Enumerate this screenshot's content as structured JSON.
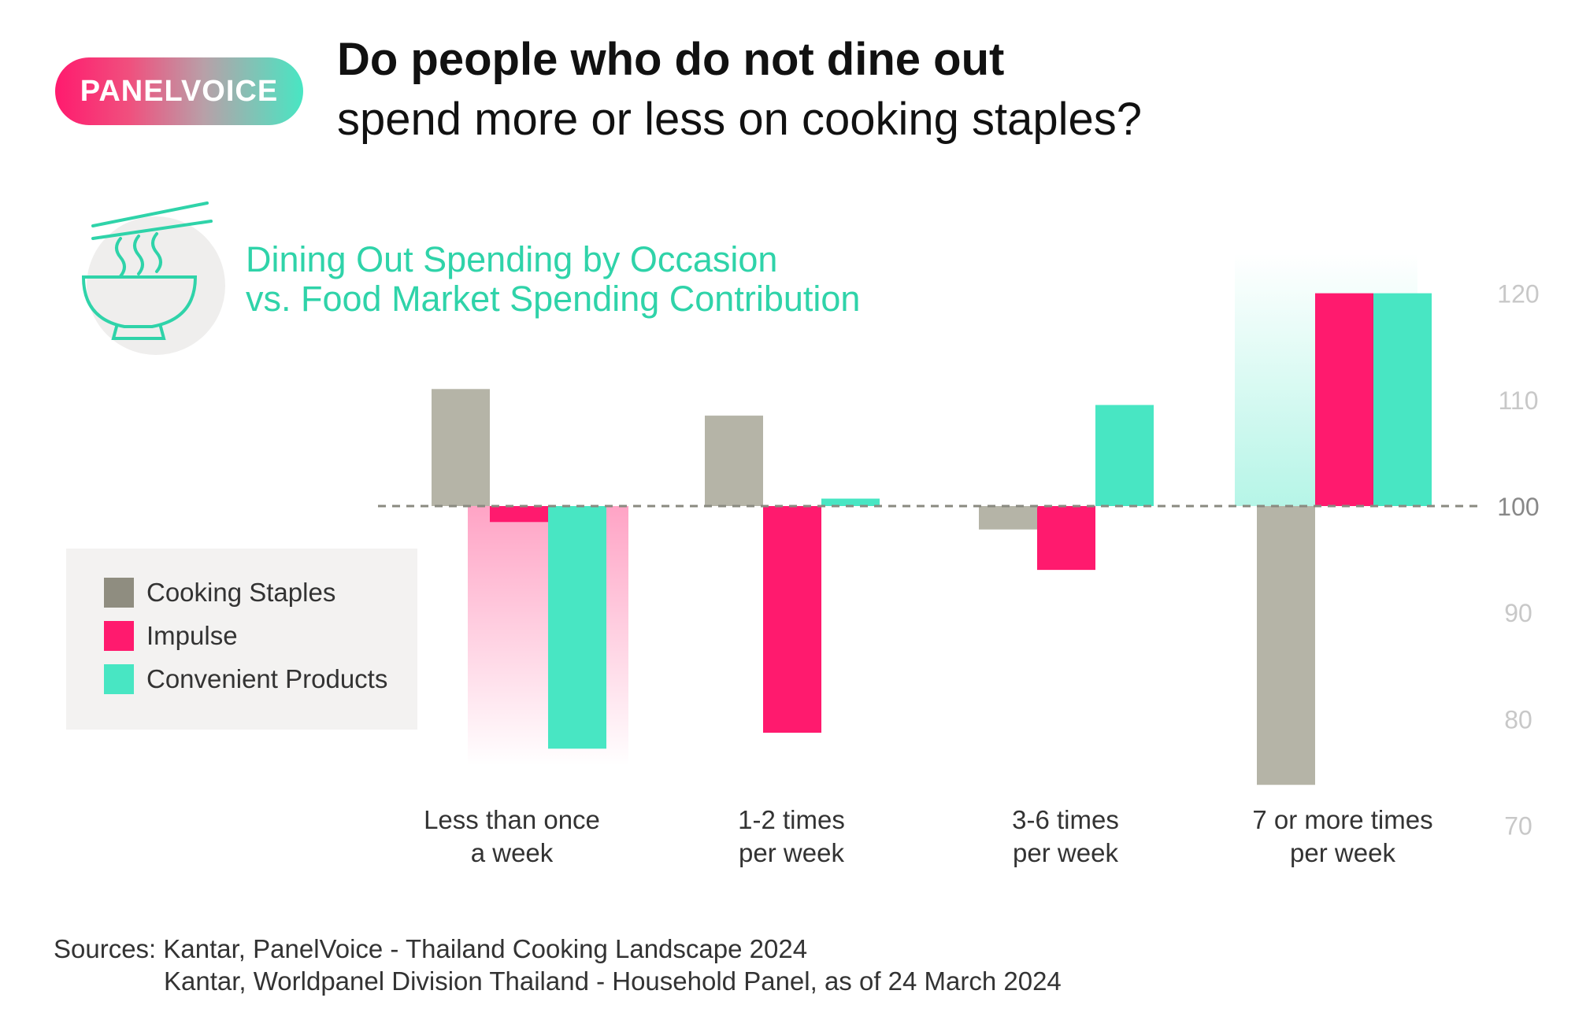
{
  "badge": "PANELVOICE",
  "header": {
    "title": "Do people who do not dine out",
    "subtitle": "spend more or less on cooking staples?"
  },
  "chart_title": {
    "line1": "Dining Out Spending by Occasion",
    "line2": "vs. Food Market Spending Contribution"
  },
  "legend": [
    {
      "label": "Cooking Staples",
      "color": "#8f8d80"
    },
    {
      "label": "Impulse",
      "color": "#ff1a6e"
    },
    {
      "label": "Convenient Products",
      "color": "#48e6c3"
    }
  ],
  "sources": {
    "line1": "Sources: Kantar, PanelVoice - Thailand Cooking Landscape 2024",
    "line2": "Kantar, Worldpanel Division Thailand - Household Panel, as of 24 March 2024"
  },
  "icons": {
    "bowl": "noodle-bowl-icon"
  },
  "chart_data": {
    "type": "bar",
    "baseline": 100,
    "ylim": [
      70,
      120
    ],
    "yticks": [
      120,
      110,
      100,
      90,
      80,
      70
    ],
    "categories": [
      [
        "Less than once",
        "a week"
      ],
      [
        "1-2 times",
        "per week"
      ],
      [
        "3-6 times",
        "per week"
      ],
      [
        "7 or more times",
        "per week"
      ]
    ],
    "series": [
      {
        "name": "Cooking Staples",
        "color": "#b5b4a7",
        "values": [
          111,
          108.5,
          97.8,
          73.8
        ]
      },
      {
        "name": "Impulse",
        "color": "#ff1a6e",
        "values": [
          98.5,
          78.7,
          94,
          120
        ]
      },
      {
        "name": "Convenient Products",
        "color": "#48e6c3",
        "values": [
          77.2,
          100.7,
          109.5,
          120
        ]
      }
    ],
    "highlights": [
      {
        "category": 0,
        "series": 1,
        "color": "#ff1a6e",
        "direction": "down"
      },
      {
        "category": 3,
        "series": 2,
        "color": "#48e6c3",
        "direction": "up"
      }
    ],
    "grid": false
  }
}
